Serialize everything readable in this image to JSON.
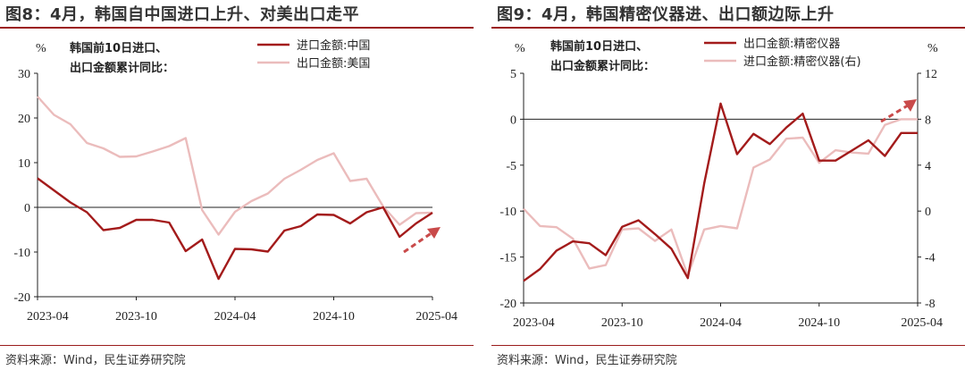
{
  "charts": [
    {
      "title": "图8：4月，韩国自中国进口上升、对美出口走平",
      "source": "资料来源：Wind，民生证券研究院",
      "annotation": [
        "韩国前10日进口、",
        "出口金额累计同比："
      ],
      "unit_left": "%",
      "unit_right": ""
    },
    {
      "title": "图9：4月，韩国精密仪器进、出口额边际上升",
      "source": "资料来源：Wind，民生证券研究院",
      "annotation": [
        "韩国前10日进口、",
        "出口金额累计同比："
      ],
      "unit_left": "%",
      "unit_right": "%"
    }
  ],
  "colors": {
    "dark_red": "#a31b1b",
    "pink": "#ebbcbc",
    "arrow": "#c94a4a"
  },
  "chart_data": [
    {
      "type": "line",
      "title": "",
      "x": [
        "2023-04",
        "2023-05",
        "2023-06",
        "2023-07",
        "2023-08",
        "2023-09",
        "2023-10",
        "2023-11",
        "2023-12",
        "2024-01",
        "2024-02",
        "2024-03",
        "2024-04",
        "2024-05",
        "2024-06",
        "2024-07",
        "2024-08",
        "2024-09",
        "2024-10",
        "2024-11",
        "2024-12",
        "2025-01",
        "2025-02",
        "2025-03",
        "2025-04"
      ],
      "x_tick_labels": [
        "2023-04",
        "2023-10",
        "2024-04",
        "2024-10",
        "2025-04"
      ],
      "ylim": [
        -20,
        30
      ],
      "y_ticks": [
        -20,
        -10,
        0,
        10,
        20,
        30
      ],
      "legend_position": "top",
      "series": [
        {
          "name": "进口金额:中国",
          "color": "#a31b1b",
          "values": [
            6.5,
            3.8,
            1.1,
            -1.1,
            -5.1,
            -4.6,
            -2.8,
            -2.8,
            -3.4,
            -9.8,
            -7.2,
            -16,
            -9.3,
            -9.4,
            -9.9,
            -5.2,
            -4.2,
            -1.6,
            -1.7,
            -3.6,
            -1.1,
            0,
            -6.6,
            -3.6,
            -1.2
          ]
        },
        {
          "name": "出口金额:美国",
          "color": "#ebbcbc",
          "values": [
            24.8,
            20.7,
            18.6,
            14.4,
            13.2,
            11.3,
            11.4,
            12.5,
            13.7,
            15.5,
            -0.6,
            -6.1,
            -1.0,
            1.4,
            3.1,
            6.4,
            8.4,
            10.6,
            12.1,
            5.9,
            6.4,
            0.2,
            -3.9,
            -1.3,
            -1.2
          ]
        }
      ]
    },
    {
      "type": "line",
      "title": "",
      "x": [
        "2023-04",
        "2023-05",
        "2023-06",
        "2023-07",
        "2023-08",
        "2023-09",
        "2023-10",
        "2023-11",
        "2023-12",
        "2024-01",
        "2024-02",
        "2024-03",
        "2024-04",
        "2024-05",
        "2024-06",
        "2024-07",
        "2024-08",
        "2024-09",
        "2024-10",
        "2024-11",
        "2024-12",
        "2025-01",
        "2025-02",
        "2025-03",
        "2025-04"
      ],
      "x_tick_labels": [
        "2023-04",
        "2023-10",
        "2024-04",
        "2024-10",
        "2025-04"
      ],
      "ylim": [
        -20,
        5
      ],
      "y_ticks": [
        -20,
        -15,
        -10,
        -5,
        0,
        5
      ],
      "y2lim": [
        -8,
        12
      ],
      "y2_ticks": [
        -8,
        -4,
        0,
        4,
        8,
        12
      ],
      "legend_position": "top",
      "series": [
        {
          "name": "出口金额:精密仪器",
          "color": "#a31b1b",
          "axis": "left",
          "values": [
            -17.6,
            -16.3,
            -14.3,
            -13.3,
            -13.5,
            -14.8,
            -11.7,
            -11.0,
            -12.5,
            -14.1,
            -17.3,
            -7.0,
            1.7,
            -3.8,
            -1.6,
            -2.7,
            -0.9,
            0.6,
            -4.5,
            -4.5,
            -3.4,
            -2.3,
            -4.0,
            -1.5,
            -1.5
          ]
        },
        {
          "name": "进口金额:精密仪器(右)",
          "color": "#ebbcbc",
          "axis": "right",
          "values": [
            0.2,
            -1.3,
            -1.4,
            -2.4,
            -5.0,
            -4.7,
            -1.6,
            -1.5,
            -2.6,
            -1.6,
            -5.6,
            -1.6,
            -1.3,
            -1.5,
            3.8,
            4.5,
            6.3,
            6.4,
            4.2,
            5.3,
            5.1,
            5.0,
            7.5,
            8.0,
            8.0
          ]
        }
      ]
    }
  ]
}
